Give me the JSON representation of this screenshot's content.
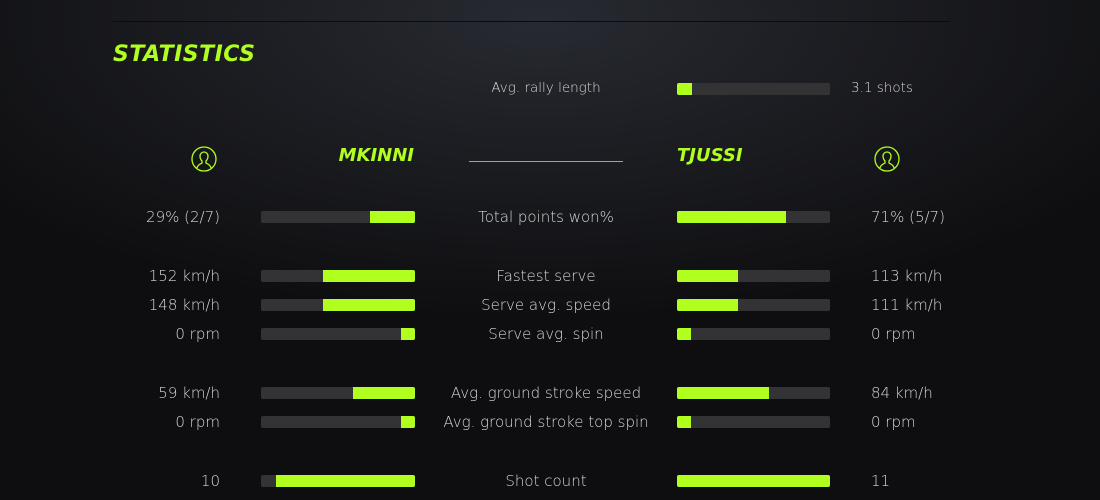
{
  "title": "STATISTICS",
  "accent": "#b0ff1f",
  "rally": {
    "label": "Avg. rally length",
    "value": "3.1 shots",
    "fill": 0.1
  },
  "players": {
    "left": {
      "name": "MKINNI",
      "icon": "user-avatar-icon"
    },
    "right": {
      "name": "TJUSSI",
      "icon": "user-avatar-icon"
    }
  },
  "stats": [
    {
      "label": "Total points won%",
      "left": "29% (2/7)",
      "right": "71% (5/7)",
      "left_fill": 0.29,
      "right_fill": 0.71
    },
    {
      "label": "Fastest serve",
      "left": "152 km/h",
      "right": "113 km/h",
      "left_fill": 0.6,
      "right_fill": 0.4
    },
    {
      "label": "Serve avg. speed",
      "left": "148 km/h",
      "right": "111 km/h",
      "left_fill": 0.6,
      "right_fill": 0.4
    },
    {
      "label": "Serve avg. spin",
      "left": "0 rpm",
      "right": "0 rpm",
      "left_fill": 0.09,
      "right_fill": 0.09
    },
    {
      "label": "Avg. ground stroke speed",
      "left": "59 km/h",
      "right": "84 km/h",
      "left_fill": 0.4,
      "right_fill": 0.6
    },
    {
      "label": "Avg. ground stroke top spin",
      "left": "0 rpm",
      "right": "0 rpm",
      "left_fill": 0.09,
      "right_fill": 0.09
    },
    {
      "label": "Shot count",
      "left": "10",
      "right": "11",
      "left_fill": 0.9,
      "right_fill": 1.0
    }
  ]
}
